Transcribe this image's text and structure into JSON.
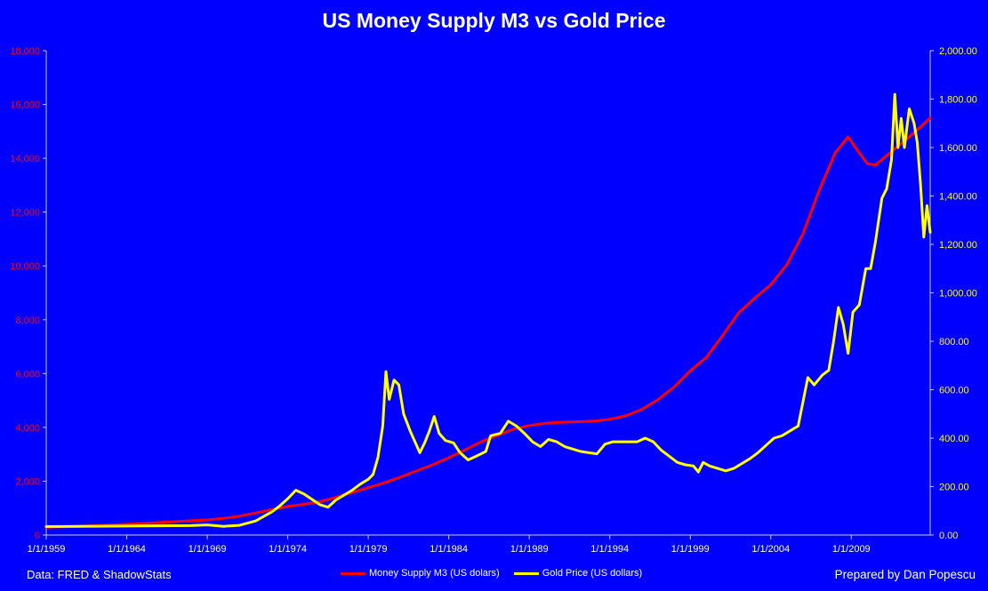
{
  "title": "US Money Supply M3 vs Gold Price",
  "source_note": "Data: FRED & ShadowStats",
  "credit_note": "Prepared by Dan Popescu",
  "colors": {
    "background": "#0000ff",
    "m3_series": "#ff0000",
    "gold_series": "#ffff00",
    "left_axis_text": "#ff0000",
    "right_axis_text": "#ffff00",
    "x_axis_text": "#ffffff"
  },
  "chart_data": {
    "type": "line",
    "title": "US Money Supply M3 vs Gold Price",
    "grid": false,
    "legend_position": "bottom",
    "x_range": [
      1959,
      2013.9
    ],
    "x_tick_labels": [
      "1/1/1959",
      "1/1/1964",
      "1/1/1969",
      "1/1/1974",
      "1/1/1979",
      "1/1/1984",
      "1/1/1989",
      "1/1/1994",
      "1/1/1999",
      "1/1/2004",
      "1/1/2009"
    ],
    "x_tick_years": [
      1959,
      1964,
      1969,
      1974,
      1979,
      1984,
      1989,
      1994,
      1999,
      2004,
      2009
    ],
    "y_left": {
      "range": [
        0,
        18000
      ],
      "ticks": [
        0,
        2000,
        4000,
        6000,
        8000,
        10000,
        12000,
        14000,
        16000,
        18000
      ],
      "tick_labels": [
        "0",
        "2,000",
        "4,000",
        "6,000",
        "8,000",
        "10,000",
        "12,000",
        "14,000",
        "16,000",
        "18,000"
      ]
    },
    "y_right": {
      "range": [
        0,
        2000
      ],
      "ticks": [
        0,
        200,
        400,
        600,
        800,
        1000,
        1200,
        1400,
        1600,
        1800,
        2000
      ],
      "tick_labels": [
        "0.00",
        "200.00",
        "400.00",
        "600.00",
        "800.00",
        "1,000.00",
        "1,200.00",
        "1,400.00",
        "1,600.00",
        "1,800.00",
        "2,000.00"
      ]
    },
    "series": [
      {
        "name": "Money Supply M3 (US dolars)",
        "axis": "left",
        "points": [
          [
            1959,
            290
          ],
          [
            1961,
            320
          ],
          [
            1963,
            370
          ],
          [
            1965,
            430
          ],
          [
            1967,
            500
          ],
          [
            1969,
            560
          ],
          [
            1970,
            620
          ],
          [
            1971,
            700
          ],
          [
            1972,
            820
          ],
          [
            1973,
            940
          ],
          [
            1974,
            1060
          ],
          [
            1975,
            1140
          ],
          [
            1976,
            1240
          ],
          [
            1977,
            1400
          ],
          [
            1978,
            1580
          ],
          [
            1979,
            1760
          ],
          [
            1980,
            1940
          ],
          [
            1981,
            2150
          ],
          [
            1982,
            2380
          ],
          [
            1983,
            2610
          ],
          [
            1984,
            2870
          ],
          [
            1985,
            3160
          ],
          [
            1986,
            3460
          ],
          [
            1987,
            3700
          ],
          [
            1988,
            3930
          ],
          [
            1989,
            4070
          ],
          [
            1990,
            4150
          ],
          [
            1991,
            4190
          ],
          [
            1992,
            4210
          ],
          [
            1993,
            4230
          ],
          [
            1994,
            4300
          ],
          [
            1995,
            4430
          ],
          [
            1996,
            4670
          ],
          [
            1997,
            5030
          ],
          [
            1998,
            5500
          ],
          [
            1999,
            6100
          ],
          [
            2000,
            6600
          ],
          [
            2001,
            7400
          ],
          [
            2002,
            8250
          ],
          [
            2003,
            8800
          ],
          [
            2004,
            9300
          ],
          [
            2005,
            10050
          ],
          [
            2006,
            11200
          ],
          [
            2007,
            12800
          ],
          [
            2008,
            14200
          ],
          [
            2008.8,
            14800
          ],
          [
            2009.5,
            14200
          ],
          [
            2010,
            13800
          ],
          [
            2010.5,
            13750
          ],
          [
            2011,
            14000
          ],
          [
            2012,
            14500
          ],
          [
            2013,
            15000
          ],
          [
            2013.9,
            15500
          ]
        ]
      },
      {
        "name": "Gold Price (US dollars)",
        "axis": "right",
        "points": [
          [
            1959,
            35
          ],
          [
            1968,
            39
          ],
          [
            1969,
            42
          ],
          [
            1970,
            36
          ],
          [
            1971,
            40
          ],
          [
            1972,
            58
          ],
          [
            1973,
            95
          ],
          [
            1973.5,
            120
          ],
          [
            1974,
            150
          ],
          [
            1974.5,
            185
          ],
          [
            1975,
            170
          ],
          [
            1976,
            125
          ],
          [
            1976.5,
            115
          ],
          [
            1977,
            145
          ],
          [
            1978,
            185
          ],
          [
            1978.5,
            210
          ],
          [
            1979,
            230
          ],
          [
            1979.3,
            250
          ],
          [
            1979.6,
            320
          ],
          [
            1979.9,
            450
          ],
          [
            1980.1,
            675
          ],
          [
            1980.3,
            560
          ],
          [
            1980.6,
            640
          ],
          [
            1980.9,
            620
          ],
          [
            1981.2,
            500
          ],
          [
            1981.6,
            430
          ],
          [
            1982.2,
            340
          ],
          [
            1982.5,
            380
          ],
          [
            1982.8,
            430
          ],
          [
            1983.1,
            490
          ],
          [
            1983.4,
            420
          ],
          [
            1983.8,
            390
          ],
          [
            1984.3,
            380
          ],
          [
            1984.7,
            340
          ],
          [
            1985.2,
            310
          ],
          [
            1985.7,
            325
          ],
          [
            1986.3,
            345
          ],
          [
            1986.6,
            410
          ],
          [
            1987.2,
            420
          ],
          [
            1987.7,
            470
          ],
          [
            1988.2,
            450
          ],
          [
            1988.7,
            420
          ],
          [
            1989.2,
            385
          ],
          [
            1989.7,
            365
          ],
          [
            1990.2,
            395
          ],
          [
            1990.7,
            385
          ],
          [
            1991.2,
            365
          ],
          [
            1991.7,
            355
          ],
          [
            1992.2,
            345
          ],
          [
            1992.7,
            340
          ],
          [
            1993.2,
            335
          ],
          [
            1993.7,
            375
          ],
          [
            1994.2,
            385
          ],
          [
            1994.7,
            385
          ],
          [
            1995.2,
            385
          ],
          [
            1995.7,
            385
          ],
          [
            1996.2,
            400
          ],
          [
            1996.7,
            385
          ],
          [
            1997.2,
            350
          ],
          [
            1997.7,
            325
          ],
          [
            1998.2,
            300
          ],
          [
            1998.7,
            290
          ],
          [
            1999.2,
            285
          ],
          [
            1999.5,
            260
          ],
          [
            1999.8,
            300
          ],
          [
            2000.2,
            285
          ],
          [
            2000.7,
            275
          ],
          [
            2001.2,
            265
          ],
          [
            2001.7,
            275
          ],
          [
            2002.2,
            295
          ],
          [
            2002.7,
            315
          ],
          [
            2003.2,
            340
          ],
          [
            2003.7,
            370
          ],
          [
            2004.2,
            400
          ],
          [
            2004.7,
            410
          ],
          [
            2005.2,
            430
          ],
          [
            2005.7,
            450
          ],
          [
            2006.0,
            550
          ],
          [
            2006.3,
            650
          ],
          [
            2006.7,
            620
          ],
          [
            2007.2,
            660
          ],
          [
            2007.6,
            680
          ],
          [
            2007.9,
            800
          ],
          [
            2008.2,
            940
          ],
          [
            2008.5,
            870
          ],
          [
            2008.8,
            750
          ],
          [
            2009.1,
            920
          ],
          [
            2009.5,
            950
          ],
          [
            2009.9,
            1100
          ],
          [
            2010.2,
            1100
          ],
          [
            2010.5,
            1210
          ],
          [
            2010.9,
            1390
          ],
          [
            2011.2,
            1430
          ],
          [
            2011.5,
            1550
          ],
          [
            2011.7,
            1820
          ],
          [
            2011.9,
            1600
          ],
          [
            2012.1,
            1720
          ],
          [
            2012.3,
            1600
          ],
          [
            2012.6,
            1760
          ],
          [
            2012.9,
            1700
          ],
          [
            2013.1,
            1620
          ],
          [
            2013.3,
            1450
          ],
          [
            2013.5,
            1230
          ],
          [
            2013.7,
            1360
          ],
          [
            2013.9,
            1250
          ]
        ]
      }
    ]
  }
}
